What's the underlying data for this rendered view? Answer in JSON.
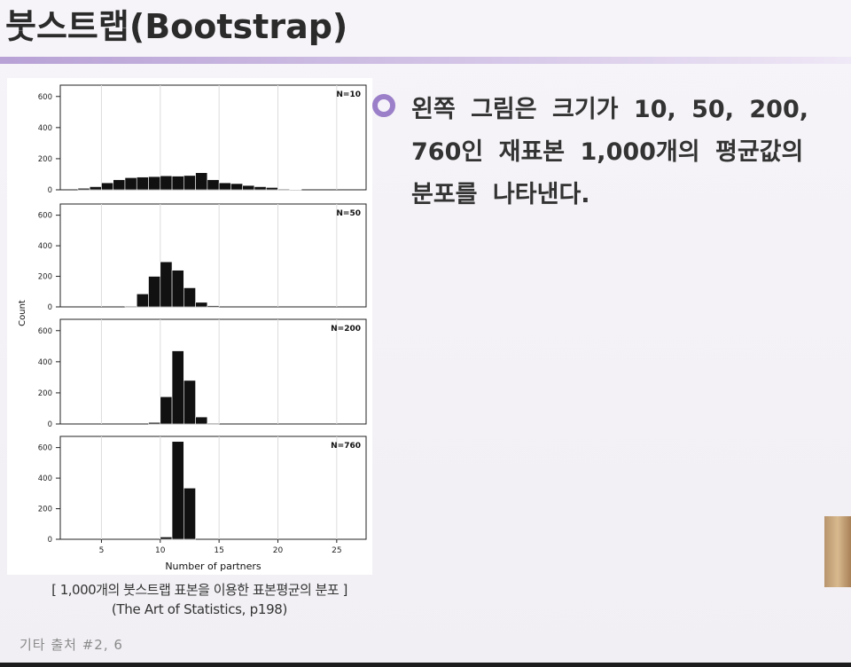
{
  "slide": {
    "title": "붓스트랩(Bootstrap)",
    "body_text": "왼쪽 그림은 크기가 10, 50, 200, 760인 재표본 1,000개의 평균값의 분포를 나타낸다.",
    "caption_line1": "[ 1,000개의 붓스트랩 표본을 이용한 표본평균의 분포 ]",
    "caption_line2": "(The Art of Statistics, p198)",
    "footer": "기타 출처 #2, 6",
    "bullet_icon": "circle-bullet-icon",
    "accent_color": "#9b7fc9"
  },
  "chart_data": {
    "type": "bar",
    "xlabel": "Number of partners",
    "ylabel": "Count",
    "xlim": [
      1.5,
      27.5
    ],
    "ylim": [
      0,
      650
    ],
    "x_ticks": [
      5,
      10,
      15,
      20,
      25
    ],
    "y_ticks": [
      0,
      200,
      400,
      600
    ],
    "grid": "vertical",
    "bin_width": 1,
    "bin_starts": [
      1,
      2,
      3,
      4,
      5,
      6,
      7,
      8,
      9,
      10,
      11,
      12,
      13,
      14,
      15,
      16,
      17,
      18,
      19,
      20,
      21,
      22,
      23,
      24,
      25,
      26,
      27
    ],
    "panels": [
      {
        "label": "N=10",
        "values": [
          0,
          0,
          10,
          20,
          45,
          65,
          78,
          82,
          85,
          90,
          88,
          92,
          110,
          65,
          45,
          40,
          28,
          20,
          15,
          5,
          3,
          0,
          0,
          0,
          0,
          0,
          0
        ]
      },
      {
        "label": "N=50",
        "values": [
          0,
          0,
          0,
          0,
          0,
          0,
          5,
          85,
          200,
          295,
          240,
          125,
          30,
          8,
          0,
          0,
          0,
          0,
          0,
          0,
          0,
          0,
          0,
          0,
          0,
          0,
          0
        ]
      },
      {
        "label": "N=200",
        "values": [
          0,
          0,
          0,
          0,
          0,
          0,
          0,
          0,
          10,
          175,
          470,
          280,
          45,
          5,
          0,
          0,
          0,
          0,
          0,
          0,
          0,
          0,
          0,
          0,
          0,
          0,
          0
        ]
      },
      {
        "label": "N=760",
        "values": [
          0,
          0,
          0,
          0,
          0,
          0,
          0,
          0,
          0,
          15,
          640,
          335,
          0,
          0,
          0,
          0,
          0,
          0,
          0,
          0,
          0,
          0,
          0,
          0,
          0,
          0,
          0
        ]
      }
    ]
  }
}
